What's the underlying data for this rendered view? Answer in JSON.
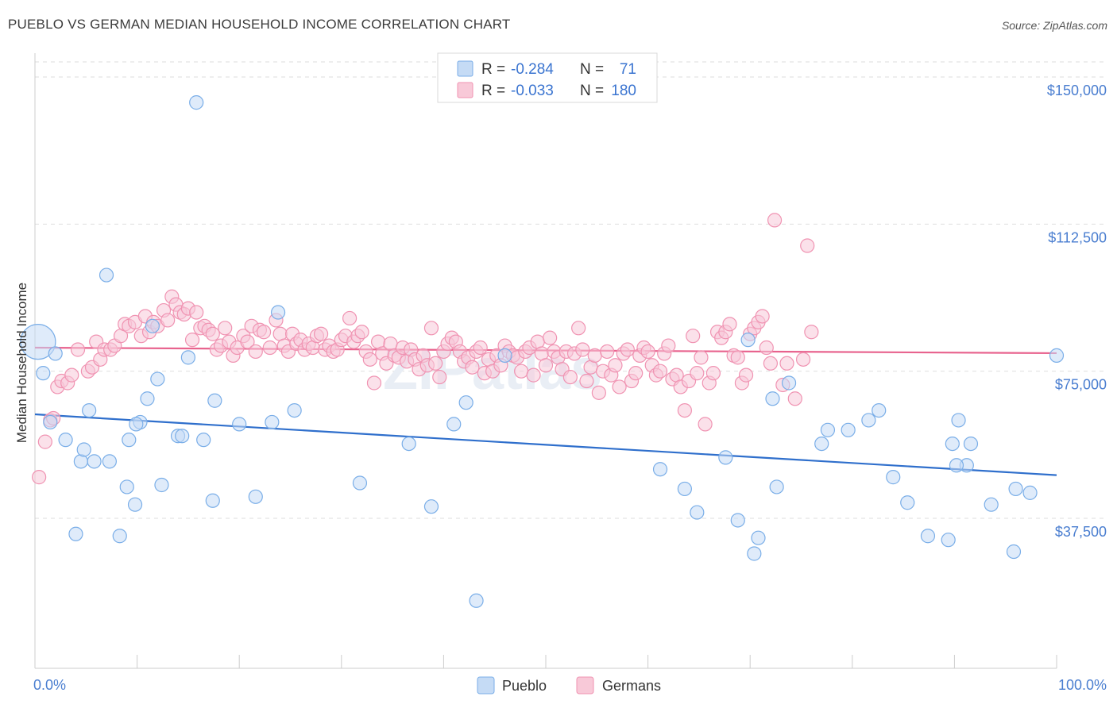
{
  "header": {
    "title": "PUEBLO VS GERMAN MEDIAN HOUSEHOLD INCOME CORRELATION CHART",
    "source": "Source: ZipAtlas.com"
  },
  "watermark": "ZIPatlas",
  "chart_data": {
    "type": "scatter",
    "ylabel": "Median Household Income",
    "xlim": [
      0,
      100
    ],
    "ylim": [
      10000,
      155000
    ],
    "x_tick_labels": [
      "0.0%",
      "100.0%"
    ],
    "y_ticks": [
      {
        "value": 37500,
        "label": "$37,500"
      },
      {
        "value": 75000,
        "label": "$75,000"
      },
      {
        "value": 112500,
        "label": "$112,500"
      },
      {
        "value": 150000,
        "label": "$150,000"
      }
    ],
    "grid": "horizontal dashed",
    "legend_position": "top-center",
    "series": [
      {
        "name": "Pueblo",
        "color": "#7aaee8",
        "fill": "#c5dbf5",
        "line_color": "#2f6fcc",
        "stats": {
          "r_label": "R =",
          "r": "-0.284",
          "n_label": "N =",
          "n": "71"
        },
        "trend": {
          "x": [
            0,
            100
          ],
          "y": [
            64000,
            48500
          ]
        },
        "points": [
          [
            0.3,
            82500
          ],
          [
            0.8,
            74500
          ],
          [
            1.5,
            62000
          ],
          [
            2,
            79500
          ],
          [
            3,
            57500
          ],
          [
            4,
            33500
          ],
          [
            4.5,
            52000
          ],
          [
            4.8,
            55000
          ],
          [
            5.3,
            65000
          ],
          [
            5.8,
            52000
          ],
          [
            7,
            99500
          ],
          [
            7.3,
            52000
          ],
          [
            8.3,
            33000
          ],
          [
            9,
            45500
          ],
          [
            9.2,
            57500
          ],
          [
            9.8,
            41000
          ],
          [
            10.3,
            62000
          ],
          [
            11,
            68000
          ],
          [
            11.5,
            86500
          ],
          [
            12,
            73000
          ],
          [
            12.4,
            46000
          ],
          [
            14,
            58500
          ],
          [
            14.4,
            58500
          ],
          [
            15,
            78500
          ],
          [
            15.8,
            143500
          ],
          [
            16.5,
            57500
          ],
          [
            17.4,
            42000
          ],
          [
            17.6,
            67500
          ],
          [
            20,
            61500
          ],
          [
            21.6,
            43000
          ],
          [
            23.2,
            62000
          ],
          [
            23.8,
            90000
          ],
          [
            25.4,
            65000
          ],
          [
            31.8,
            46500
          ],
          [
            36.6,
            56500
          ],
          [
            38.8,
            40500
          ],
          [
            41,
            61500
          ],
          [
            42.2,
            67000
          ],
          [
            43.2,
            16500
          ],
          [
            46,
            79000
          ],
          [
            61.2,
            50000
          ],
          [
            63.6,
            45000
          ],
          [
            64.8,
            39000
          ],
          [
            67.6,
            53000
          ],
          [
            68.8,
            37000
          ],
          [
            69.8,
            83000
          ],
          [
            70.4,
            28500
          ],
          [
            70.8,
            32500
          ],
          [
            72.2,
            68000
          ],
          [
            72.6,
            45500
          ],
          [
            73.8,
            72000
          ],
          [
            77,
            56500
          ],
          [
            77.6,
            60000
          ],
          [
            79.6,
            60000
          ],
          [
            81.6,
            62500
          ],
          [
            82.6,
            65000
          ],
          [
            84,
            48000
          ],
          [
            85.4,
            41500
          ],
          [
            87.4,
            33000
          ],
          [
            89.4,
            32000
          ],
          [
            89.8,
            56500
          ],
          [
            90.4,
            62500
          ],
          [
            91.2,
            51000
          ],
          [
            91.6,
            56500
          ],
          [
            93.6,
            41000
          ],
          [
            95.8,
            29000
          ],
          [
            97.4,
            44000
          ],
          [
            96,
            45000
          ],
          [
            100,
            79000
          ],
          [
            90.2,
            51000
          ],
          [
            9.9,
            61500
          ]
        ]
      },
      {
        "name": "Germans",
        "color": "#f093b2",
        "fill": "#f8c9d8",
        "line_color": "#e8638e",
        "stats": {
          "r_label": "R =",
          "r": "-0.033",
          "n_label": "N =",
          "n": "180"
        },
        "trend": {
          "x": [
            0,
            100
          ],
          "y": [
            81000,
            79600
          ]
        },
        "points": [
          [
            0.4,
            48000
          ],
          [
            1,
            57000
          ],
          [
            1.5,
            62500
          ],
          [
            1.8,
            63000
          ],
          [
            2.2,
            71000
          ],
          [
            2.6,
            72500
          ],
          [
            3.2,
            72000
          ],
          [
            3.6,
            74000
          ],
          [
            4.2,
            80500
          ],
          [
            5.2,
            75000
          ],
          [
            5.6,
            76000
          ],
          [
            6,
            82500
          ],
          [
            6.4,
            78000
          ],
          [
            6.8,
            80500
          ],
          [
            7.4,
            80500
          ],
          [
            7.8,
            81500
          ],
          [
            8.4,
            84000
          ],
          [
            8.8,
            87000
          ],
          [
            9.2,
            86500
          ],
          [
            9.8,
            87500
          ],
          [
            10.4,
            84000
          ],
          [
            10.8,
            89000
          ],
          [
            11.2,
            85000
          ],
          [
            11.6,
            87500
          ],
          [
            12,
            86500
          ],
          [
            12.6,
            90500
          ],
          [
            13,
            88000
          ],
          [
            13.4,
            94000
          ],
          [
            13.8,
            92000
          ],
          [
            14.2,
            90000
          ],
          [
            14.6,
            89500
          ],
          [
            15,
            91000
          ],
          [
            15.4,
            83000
          ],
          [
            15.8,
            90000
          ],
          [
            16.2,
            86000
          ],
          [
            16.6,
            86500
          ],
          [
            17,
            85500
          ],
          [
            17.4,
            84500
          ],
          [
            17.8,
            80500
          ],
          [
            18.2,
            81500
          ],
          [
            18.6,
            86000
          ],
          [
            19,
            82500
          ],
          [
            19.4,
            79000
          ],
          [
            19.8,
            81000
          ],
          [
            20.4,
            84000
          ],
          [
            20.8,
            82500
          ],
          [
            21.2,
            86500
          ],
          [
            21.6,
            80000
          ],
          [
            22,
            85500
          ],
          [
            22.4,
            85000
          ],
          [
            23,
            81000
          ],
          [
            23.6,
            88000
          ],
          [
            24,
            84500
          ],
          [
            24.4,
            81500
          ],
          [
            24.8,
            80000
          ],
          [
            25.2,
            84500
          ],
          [
            25.6,
            82000
          ],
          [
            26,
            83000
          ],
          [
            26.4,
            80500
          ],
          [
            26.8,
            82000
          ],
          [
            27.2,
            81000
          ],
          [
            27.6,
            84000
          ],
          [
            28,
            84500
          ],
          [
            28.4,
            80500
          ],
          [
            28.8,
            81500
          ],
          [
            29.2,
            80000
          ],
          [
            29.6,
            80500
          ],
          [
            30,
            83000
          ],
          [
            30.4,
            84000
          ],
          [
            30.8,
            88500
          ],
          [
            31.2,
            82500
          ],
          [
            31.6,
            84000
          ],
          [
            32,
            85000
          ],
          [
            32.4,
            80000
          ],
          [
            32.8,
            78000
          ],
          [
            33.2,
            72000
          ],
          [
            33.6,
            82500
          ],
          [
            34,
            79500
          ],
          [
            34.4,
            77000
          ],
          [
            34.8,
            82000
          ],
          [
            35.2,
            79000
          ],
          [
            35.6,
            78500
          ],
          [
            36,
            81000
          ],
          [
            36.4,
            77500
          ],
          [
            36.8,
            80500
          ],
          [
            37.2,
            78000
          ],
          [
            37.6,
            75500
          ],
          [
            38,
            79000
          ],
          [
            38.4,
            76500
          ],
          [
            38.8,
            86000
          ],
          [
            39.2,
            77000
          ],
          [
            39.6,
            73500
          ],
          [
            40,
            80000
          ],
          [
            40.4,
            82000
          ],
          [
            40.8,
            83500
          ],
          [
            41.2,
            82500
          ],
          [
            41.6,
            80000
          ],
          [
            42,
            77500
          ],
          [
            42.4,
            78500
          ],
          [
            42.8,
            76000
          ],
          [
            43.2,
            80000
          ],
          [
            43.6,
            81000
          ],
          [
            44,
            74500
          ],
          [
            44.4,
            78000
          ],
          [
            44.8,
            75000
          ],
          [
            45.2,
            79000
          ],
          [
            45.6,
            76500
          ],
          [
            46,
            81500
          ],
          [
            46.4,
            80000
          ],
          [
            46.8,
            79000
          ],
          [
            47.2,
            78500
          ],
          [
            47.6,
            75000
          ],
          [
            48,
            80000
          ],
          [
            48.4,
            81000
          ],
          [
            48.8,
            74000
          ],
          [
            49.2,
            82500
          ],
          [
            49.6,
            79500
          ],
          [
            50,
            76500
          ],
          [
            50.4,
            83500
          ],
          [
            50.8,
            80000
          ],
          [
            51.2,
            78500
          ],
          [
            51.6,
            75500
          ],
          [
            52,
            80000
          ],
          [
            52.4,
            73500
          ],
          [
            52.8,
            79500
          ],
          [
            53.2,
            86000
          ],
          [
            53.6,
            80500
          ],
          [
            54,
            72500
          ],
          [
            54.4,
            76000
          ],
          [
            54.8,
            79000
          ],
          [
            55.2,
            69500
          ],
          [
            55.6,
            75000
          ],
          [
            56,
            80000
          ],
          [
            56.4,
            74000
          ],
          [
            56.8,
            76500
          ],
          [
            57.2,
            71000
          ],
          [
            57.6,
            79500
          ],
          [
            58,
            80500
          ],
          [
            58.4,
            72500
          ],
          [
            58.8,
            74500
          ],
          [
            59.2,
            79000
          ],
          [
            59.6,
            81000
          ],
          [
            60,
            80000
          ],
          [
            60.4,
            76500
          ],
          [
            60.8,
            74000
          ],
          [
            61.2,
            75000
          ],
          [
            61.6,
            79500
          ],
          [
            62,
            81500
          ],
          [
            62.4,
            73000
          ],
          [
            62.8,
            74000
          ],
          [
            63.2,
            71000
          ],
          [
            63.6,
            65000
          ],
          [
            64,
            72500
          ],
          [
            64.4,
            84000
          ],
          [
            64.8,
            74500
          ],
          [
            65.2,
            78500
          ],
          [
            65.6,
            61500
          ],
          [
            66,
            72000
          ],
          [
            66.4,
            74500
          ],
          [
            66.8,
            85000
          ],
          [
            67.2,
            83500
          ],
          [
            67.6,
            85000
          ],
          [
            68,
            87000
          ],
          [
            68.4,
            79000
          ],
          [
            68.8,
            78500
          ],
          [
            69.2,
            72000
          ],
          [
            69.6,
            74000
          ],
          [
            70,
            84500
          ],
          [
            70.4,
            86000
          ],
          [
            70.8,
            87500
          ],
          [
            71.2,
            89000
          ],
          [
            71.6,
            81000
          ],
          [
            72,
            77000
          ],
          [
            72.4,
            113500
          ],
          [
            73.2,
            71500
          ],
          [
            73.6,
            77000
          ],
          [
            74.4,
            68000
          ],
          [
            75.6,
            107000
          ],
          [
            75.2,
            78000
          ],
          [
            76,
            85000
          ]
        ]
      }
    ]
  }
}
